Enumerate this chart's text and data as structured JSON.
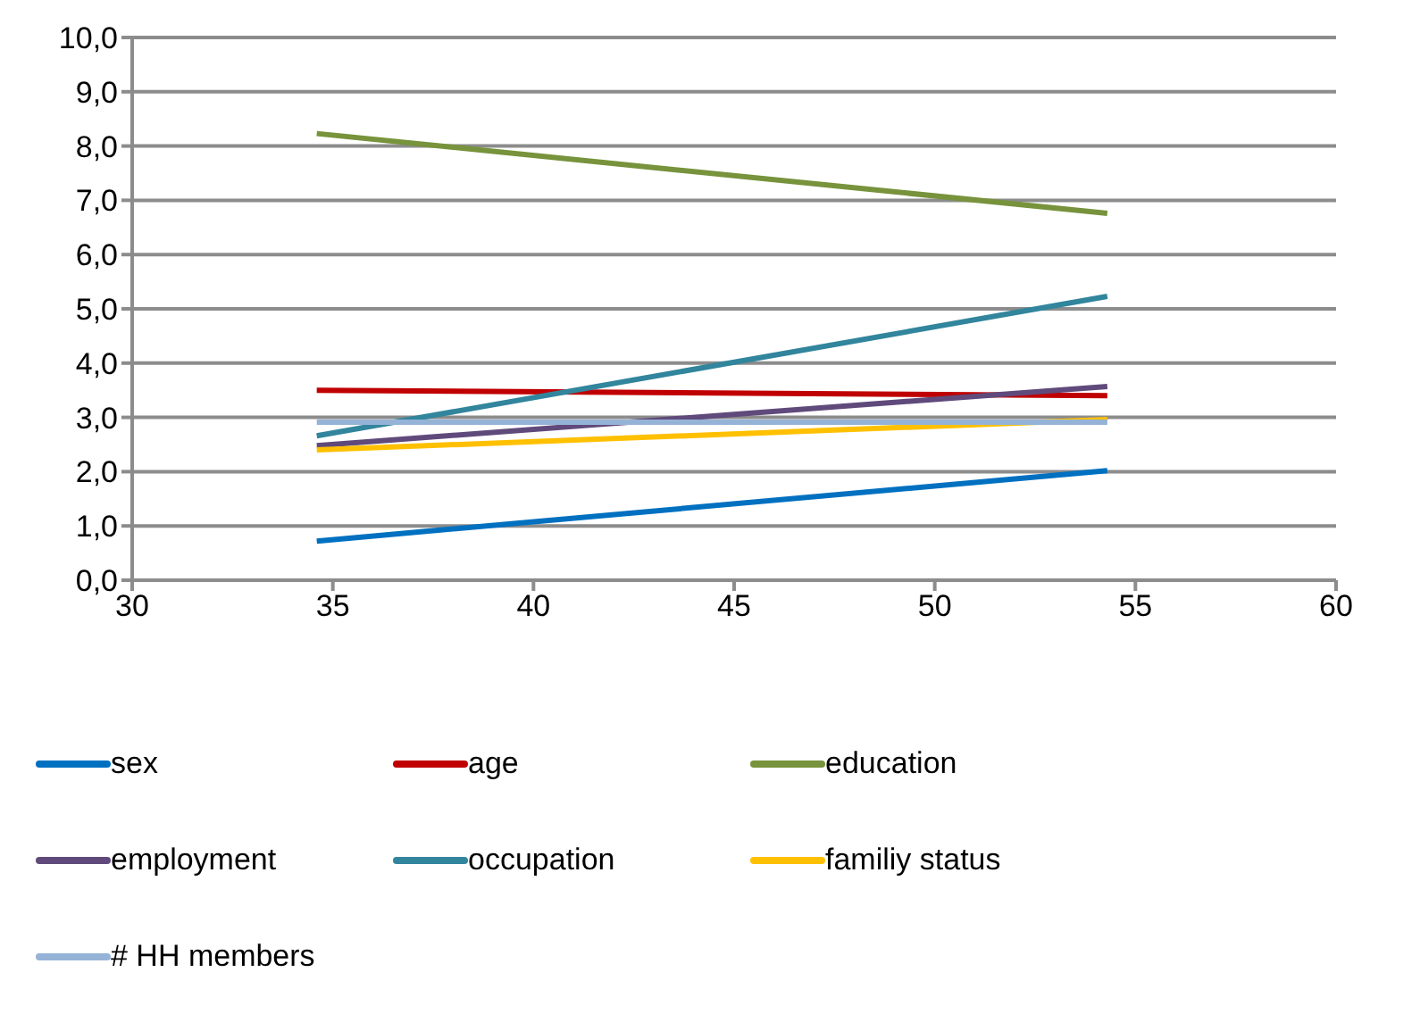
{
  "chart_data": {
    "type": "line",
    "x": [
      34.6,
      54.3
    ],
    "xlim": [
      30,
      60
    ],
    "xticks": [
      30,
      35,
      40,
      45,
      50,
      55,
      60
    ],
    "ylim": [
      0,
      10
    ],
    "yticks": [
      {
        "value": 0,
        "label": "0,0"
      },
      {
        "value": 1,
        "label": "1,0"
      },
      {
        "value": 2,
        "label": "2,0"
      },
      {
        "value": 3,
        "label": "3,0"
      },
      {
        "value": 4,
        "label": "4,0"
      },
      {
        "value": 5,
        "label": "5,0"
      },
      {
        "value": 6,
        "label": "6,0"
      },
      {
        "value": 7,
        "label": "7,0"
      },
      {
        "value": 8,
        "label": "8,0"
      },
      {
        "value": 9,
        "label": "9,0"
      },
      {
        "value": 10,
        "label": "10,0"
      }
    ],
    "grid": "y",
    "legend": "bottom",
    "marker": "none",
    "line_style": "solid",
    "series": [
      {
        "name": "sex",
        "color": "#0070c0",
        "values": [
          0.72,
          2.02
        ]
      },
      {
        "name": "age",
        "color": "#c00000",
        "values": [
          3.5,
          3.4
        ]
      },
      {
        "name": "education",
        "color": "#77933c",
        "values": [
          8.23,
          6.76
        ]
      },
      {
        "name": "employment",
        "color": "#604a7b",
        "values": [
          2.48,
          3.57
        ]
      },
      {
        "name": "occupation",
        "color": "#31859c",
        "values": [
          2.66,
          5.23
        ]
      },
      {
        "name": "familiy status",
        "color": "#ffc000",
        "values": [
          2.4,
          2.96
        ]
      },
      {
        "name": "# HH members",
        "color": "#95b3d7",
        "values": [
          2.91,
          2.91
        ]
      }
    ]
  }
}
